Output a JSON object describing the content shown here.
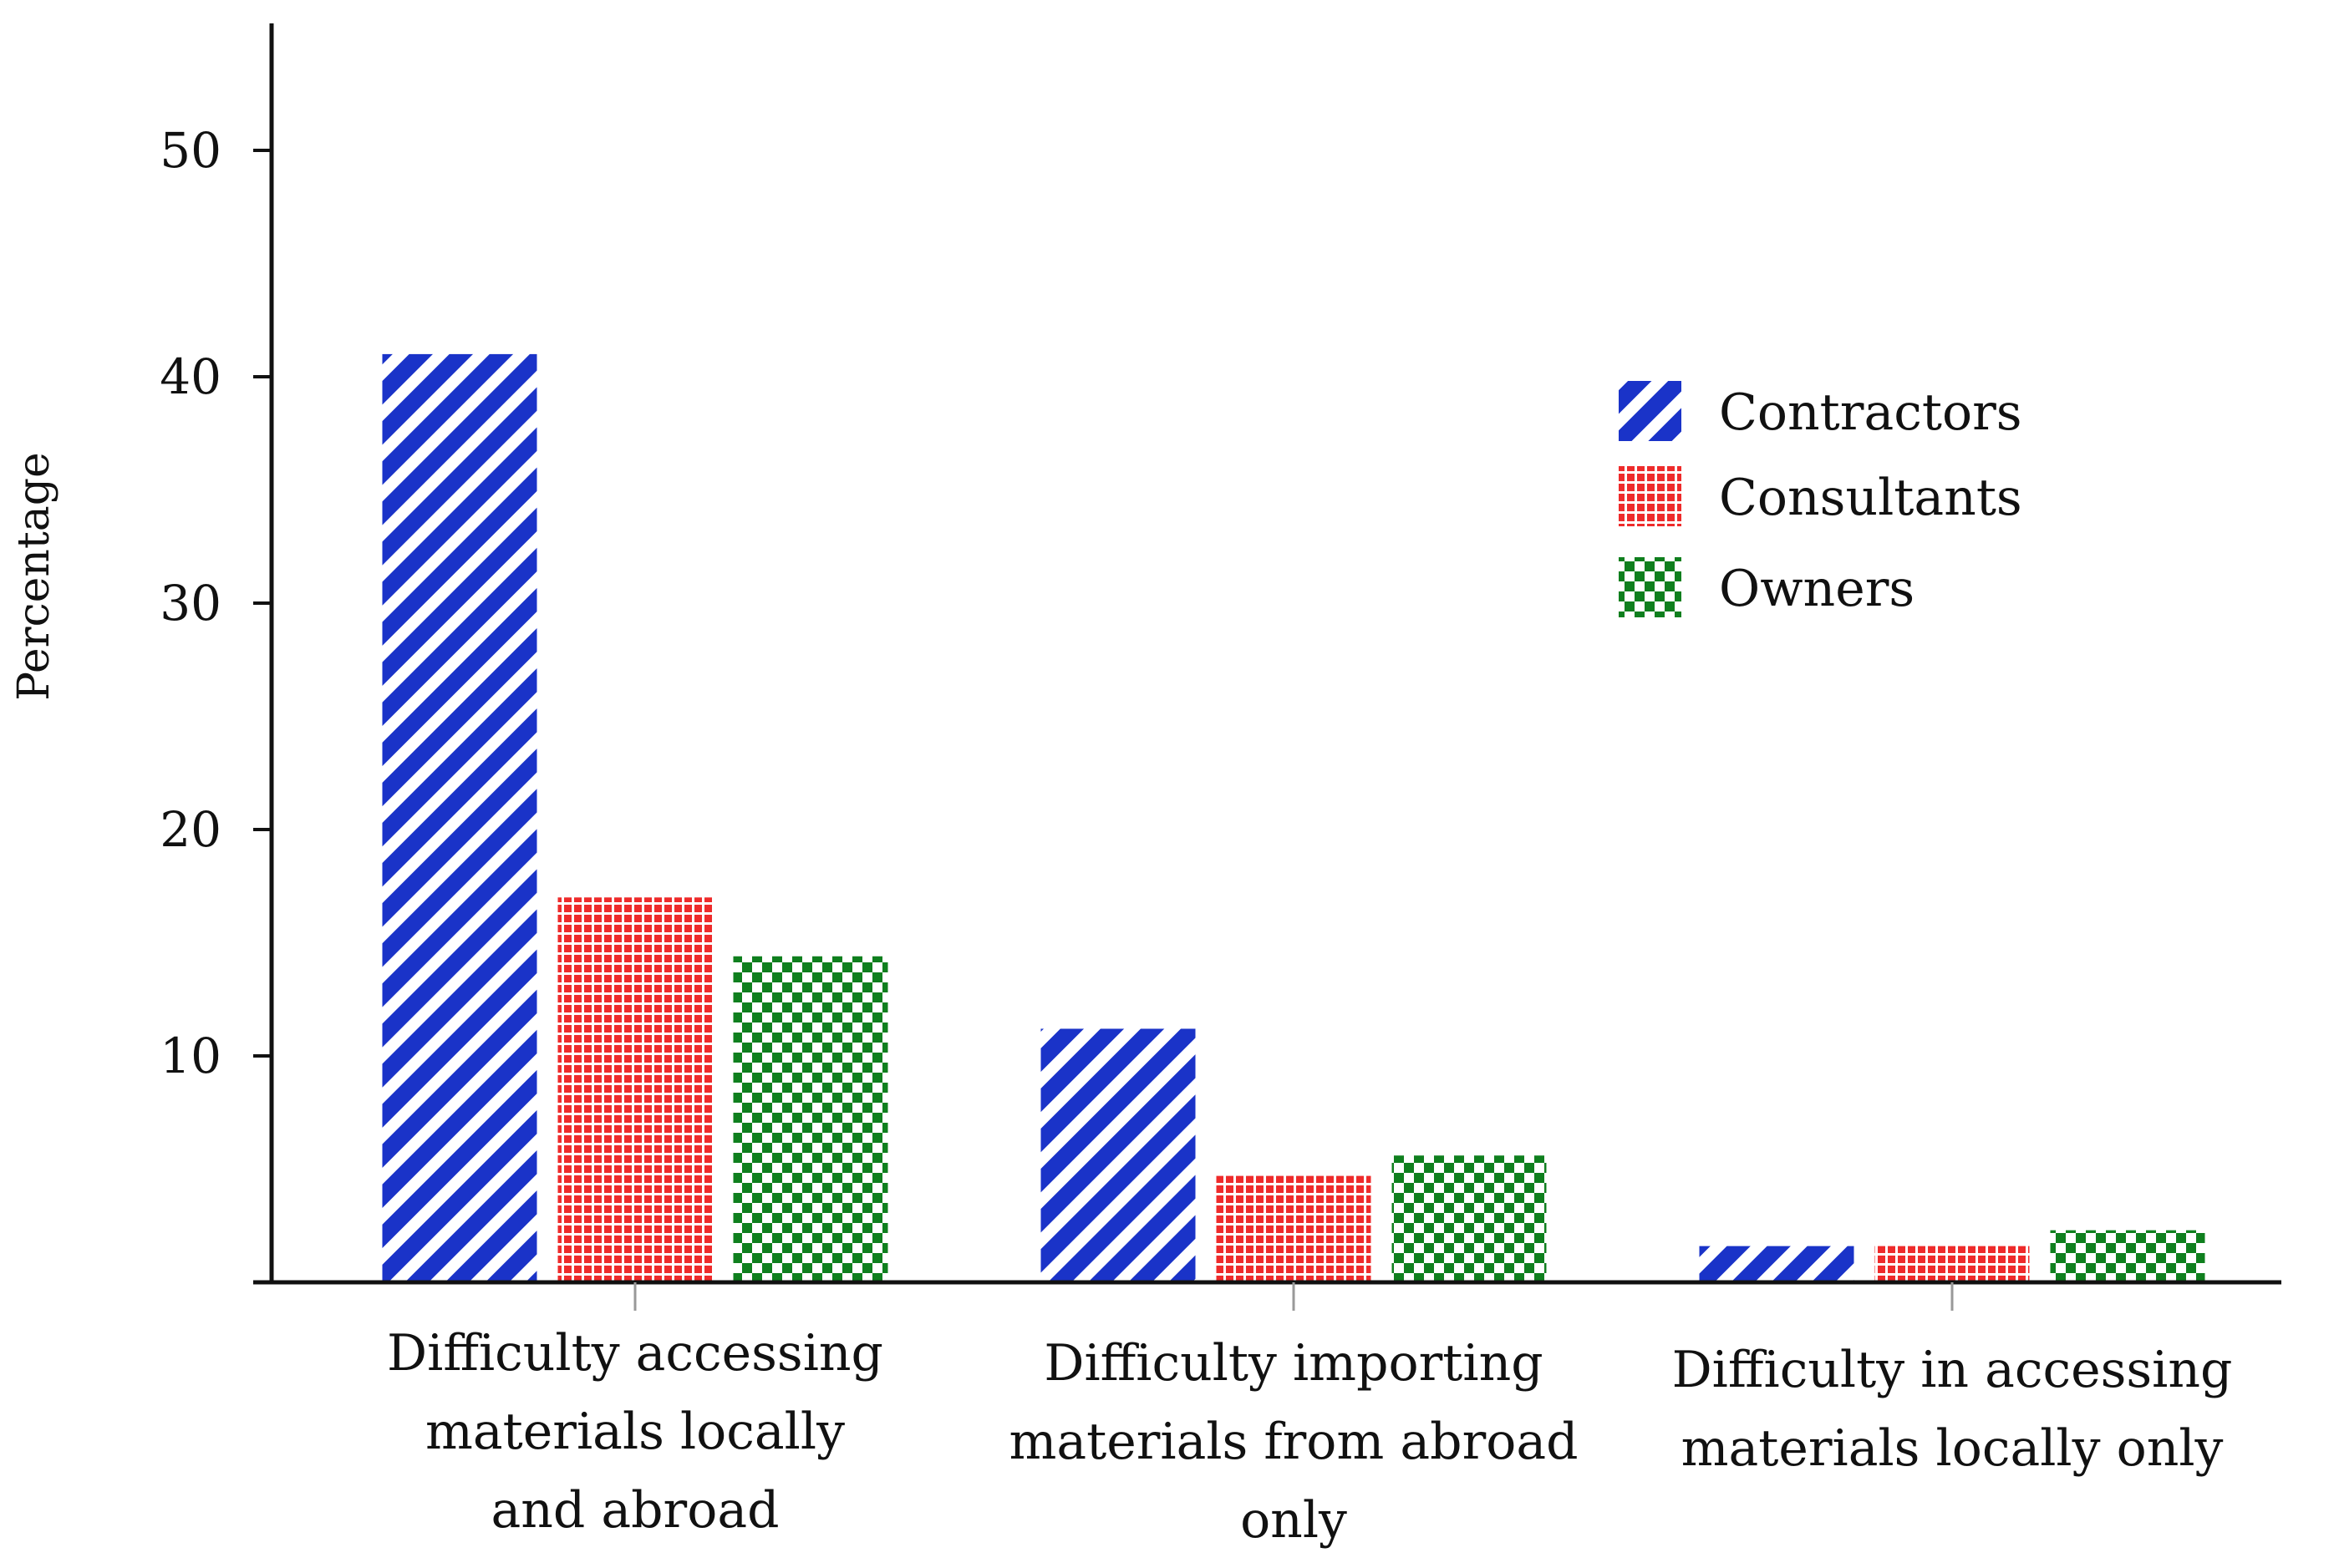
{
  "chart_data": {
    "type": "bar",
    "title": "",
    "xlabel": "",
    "ylabel": "Percentage",
    "ylim": [
      0,
      56
    ],
    "yticks": [
      10,
      20,
      30,
      40,
      50
    ],
    "grid": false,
    "legend_position": "right",
    "categories": [
      [
        "Difficulty accessing",
        "materials locally",
        "and abroad"
      ],
      [
        "Difficulty importing",
        "materials from abroad",
        "only"
      ],
      [
        "Difficulty in accessing",
        "materials locally only"
      ]
    ],
    "series": [
      {
        "name": "Contractors",
        "color": "#1a33c8",
        "pattern": "diagonal-stripes",
        "values": [
          41,
          11.2,
          1.6
        ]
      },
      {
        "name": "Consultants",
        "color": "#ee2b2b",
        "pattern": "grid",
        "values": [
          17,
          4.7,
          1.6
        ]
      },
      {
        "name": "Owners",
        "color": "#0f7f1e",
        "pattern": "checker",
        "values": [
          14.4,
          5.6,
          2.3
        ]
      }
    ]
  }
}
